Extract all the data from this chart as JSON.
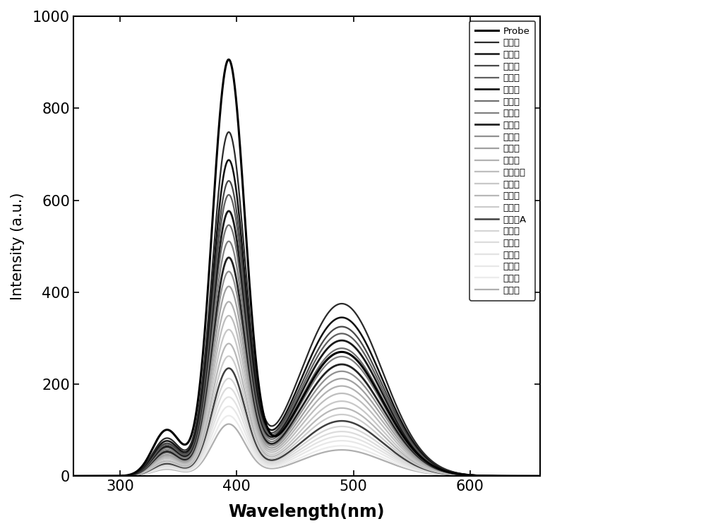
{
  "xlabel": "Wavelength(nm)",
  "ylabel": "Intensity (a.u.)",
  "xlim": [
    260,
    660
  ],
  "ylim": [
    0,
    1000
  ],
  "xticks": [
    300,
    400,
    500,
    600
  ],
  "yticks": [
    0,
    200,
    400,
    600,
    800,
    1000
  ],
  "series": [
    {
      "name": "Probe",
      "color": "#000000",
      "lw": 2.2,
      "p1": 900,
      "p2": 100,
      "p3": 270
    },
    {
      "name": "恶霉灵",
      "color": "#2a2a2a",
      "lw": 1.6,
      "p1": 740,
      "p2": 82,
      "p3": 375
    },
    {
      "name": "呻虫胺",
      "color": "#111111",
      "lw": 1.8,
      "p1": 680,
      "p2": 76,
      "p3": 345
    },
    {
      "name": "阿克泰",
      "color": "#484848",
      "lw": 1.6,
      "p1": 635,
      "p2": 71,
      "p3": 325
    },
    {
      "name": "啮虫咊",
      "color": "#606060",
      "lw": 1.6,
      "p1": 605,
      "p2": 68,
      "p3": 310
    },
    {
      "name": "抗蚯威",
      "color": "#1a1a1a",
      "lw": 2.0,
      "p1": 570,
      "p2": 64,
      "p3": 295
    },
    {
      "name": "咋唢锐",
      "color": "#707070",
      "lw": 1.6,
      "p1": 540,
      "p2": 61,
      "p3": 278
    },
    {
      "name": "多果定",
      "color": "#808080",
      "lw": 1.6,
      "p1": 505,
      "p2": 57,
      "p3": 260
    },
    {
      "name": "甲霜林",
      "color": "#222222",
      "lw": 2.0,
      "p1": 470,
      "p2": 53,
      "p3": 243
    },
    {
      "name": "嘧霉胺",
      "color": "#909090",
      "lw": 1.6,
      "p1": 440,
      "p2": 50,
      "p3": 228
    },
    {
      "name": "恶霜灵",
      "color": "#a0a0a0",
      "lw": 1.6,
      "p1": 408,
      "p2": 46,
      "p3": 212
    },
    {
      "name": "甲萌威",
      "color": "#b2b2b2",
      "lw": 1.6,
      "p1": 375,
      "p2": 43,
      "p3": 196
    },
    {
      "name": "乙硫苯威",
      "color": "#bebebe",
      "lw": 1.6,
      "p1": 345,
      "p2": 40,
      "p3": 180
    },
    {
      "name": "吱唢锐",
      "color": "#c8c8c8",
      "lw": 1.6,
      "p1": 315,
      "p2": 37,
      "p3": 163
    },
    {
      "name": "氧环唢",
      "color": "#b8b8b8",
      "lw": 1.6,
      "p1": 285,
      "p2": 33,
      "p3": 148
    },
    {
      "name": "戊唢醇",
      "color": "#cccccc",
      "lw": 1.6,
      "p1": 258,
      "p2": 30,
      "p3": 134
    },
    {
      "name": "三唢醇A",
      "color": "#404040",
      "lw": 1.8,
      "p1": 232,
      "p2": 27,
      "p3": 120
    },
    {
      "name": "戊菌唢",
      "color": "#d5d5d5",
      "lw": 1.6,
      "p1": 210,
      "p2": 25,
      "p3": 108
    },
    {
      "name": "粉唢醇",
      "color": "#dcdcdc",
      "lw": 1.6,
      "p1": 190,
      "p2": 23,
      "p3": 97
    },
    {
      "name": "氟哓唢",
      "color": "#e3e3e3",
      "lw": 1.6,
      "p1": 170,
      "p2": 21,
      "p3": 87
    },
    {
      "name": "三唢锐",
      "color": "#e8e8e8",
      "lw": 1.6,
      "p1": 150,
      "p2": 19,
      "p3": 77
    },
    {
      "name": "三环唢",
      "color": "#ececec",
      "lw": 1.6,
      "p1": 130,
      "p2": 17,
      "p3": 66
    },
    {
      "name": "白枯草",
      "color": "#afafaf",
      "lw": 1.6,
      "p1": 112,
      "p2": 15,
      "p3": 57
    }
  ],
  "background_color": "#ffffff",
  "figsize": [
    10.0,
    7.52
  ],
  "dpi": 100
}
